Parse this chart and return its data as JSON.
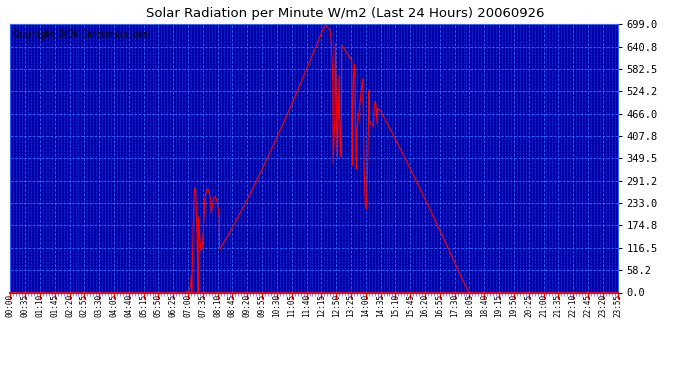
{
  "title": "Solar Radiation per Minute W/m2 (Last 24 Hours) 20060926",
  "copyright_text": "Copyright 2006 Certronics.com",
  "bg_color": "#0000AA",
  "line_color": "#ff0000",
  "grid_color": "#3333ff",
  "title_color": "#000000",
  "y_ticks": [
    0.0,
    58.2,
    116.5,
    174.8,
    233.0,
    291.2,
    349.5,
    407.8,
    466.0,
    524.2,
    582.5,
    640.8,
    699.0
  ],
  "y_max": 699.0,
  "x_labels": [
    "00:00",
    "00:35",
    "01:10",
    "01:45",
    "02:20",
    "02:55",
    "03:30",
    "04:05",
    "04:40",
    "05:15",
    "05:50",
    "06:25",
    "07:00",
    "07:35",
    "08:10",
    "08:45",
    "09:20",
    "09:55",
    "10:30",
    "11:05",
    "11:40",
    "12:15",
    "12:50",
    "13:25",
    "14:00",
    "14:35",
    "15:10",
    "15:45",
    "16:20",
    "16:55",
    "17:30",
    "18:05",
    "18:40",
    "19:15",
    "19:50",
    "20:25",
    "21:00",
    "21:35",
    "22:10",
    "22:45",
    "23:20",
    "23:55"
  ],
  "num_points": 1440
}
